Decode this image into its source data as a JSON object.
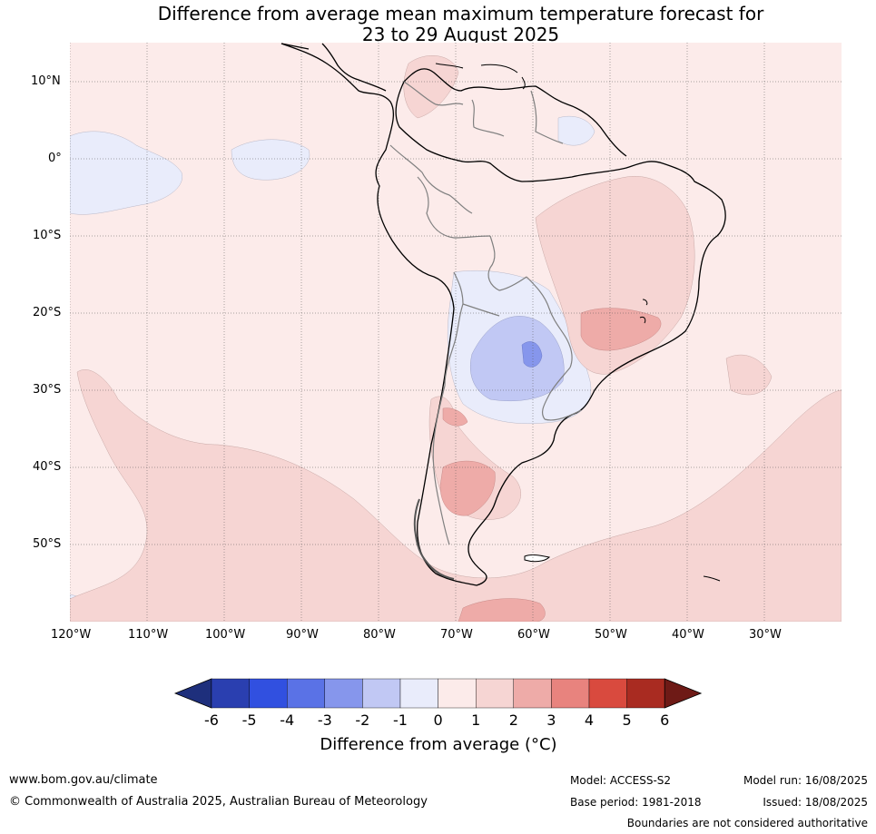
{
  "title_line1": "Difference from average mean maximum temperature forecast for",
  "title_line2": "23 to 29 August 2025",
  "lat_labels": [
    "10°N",
    "0°",
    "10°S",
    "20°S",
    "30°S",
    "40°S",
    "50°S"
  ],
  "lon_labels": [
    "120°W",
    "110°W",
    "100°W",
    "90°W",
    "80°W",
    "70°W",
    "60°W",
    "50°W",
    "40°W",
    "30°W"
  ],
  "colorbar": {
    "ticks": [
      "-6",
      "-5",
      "-4",
      "-3",
      "-2",
      "-1",
      "0",
      "1",
      "2",
      "3",
      "4",
      "5",
      "6"
    ],
    "colors": [
      "#1e2f7c",
      "#2a3fb0",
      "#3150e0",
      "#5a72e6",
      "#8696ec",
      "#c1c8f4",
      "#e9ecfb",
      "#fcebea",
      "#f6d5d3",
      "#eeaba8",
      "#e8837e",
      "#d94a3e",
      "#a92b21",
      "#6e1a16"
    ],
    "label": "Difference from average (°C)"
  },
  "footer": {
    "website": "www.bom.gov.au/climate",
    "copyright": "© Commonwealth of Australia 2025, Australian Bureau of Meteorology",
    "model": "Model: ACCESS-S2",
    "base_period": "Base period: 1981-2018",
    "model_run": "Model run: 16/08/2025",
    "issued": "Issued: 18/08/2025",
    "disclaimer": "Boundaries are not considered authoritative"
  }
}
